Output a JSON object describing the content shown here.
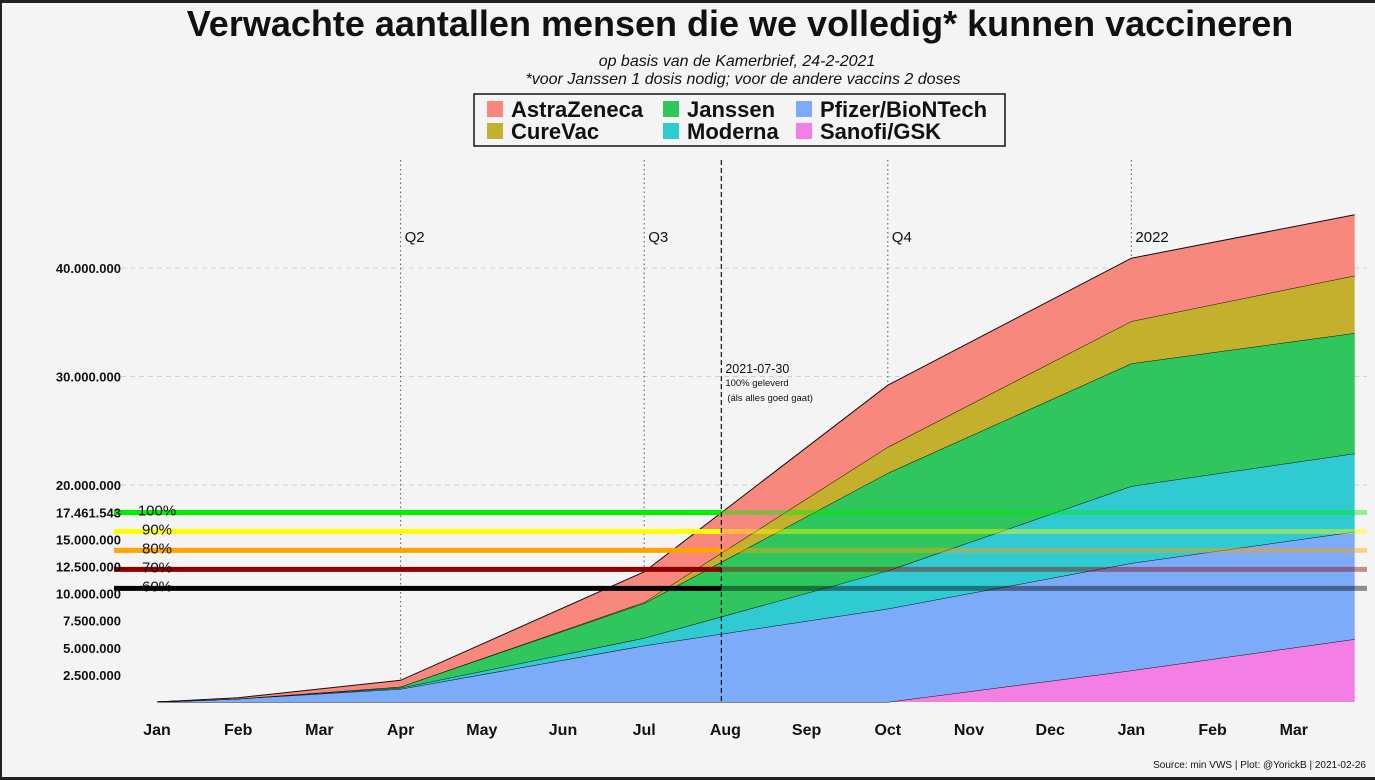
{
  "chart_data": {
    "type": "area",
    "title": "Verwachte aantallen mensen die we volledig* kunnen vaccineren",
    "subtitle": "op basis van de Kamerbrief, 24-2-2021",
    "subtitle2": "*voor Janssen 1 dosis nodig; voor de andere vaccins 2 doses",
    "source": "Source: min VWS | Plot: @YorickB |  2021-02-26",
    "x_months": [
      "Jan",
      "Feb",
      "Mar",
      "Apr",
      "May",
      "Jun",
      "Jul",
      "Aug",
      "Sep",
      "Oct",
      "Nov",
      "Dec",
      "Jan",
      "Feb",
      "Mar"
    ],
    "x_range_months": [
      0,
      14.75
    ],
    "ylim": [
      0,
      45000000
    ],
    "y_ticks": [
      {
        "value": 2500000,
        "label": "2.500.000"
      },
      {
        "value": 5000000,
        "label": "5.000.000"
      },
      {
        "value": 7500000,
        "label": "7.500.000"
      },
      {
        "value": 10000000,
        "label": "10.000.000"
      },
      {
        "value": 12500000,
        "label": "12.500.000"
      },
      {
        "value": 15000000,
        "label": "15.000.000"
      },
      {
        "value": 17461543,
        "label": "17.461.543"
      },
      {
        "value": 20000000,
        "label": "20.000.000"
      },
      {
        "value": 30000000,
        "label": "30.000.000"
      },
      {
        "value": 40000000,
        "label": "40.000.000"
      }
    ],
    "gridlines_at": [
      20000000,
      30000000,
      40000000
    ],
    "x": [
      0,
      1,
      3,
      6,
      9,
      12,
      14.75
    ],
    "series": [
      {
        "name": "Sanofi/GSK",
        "color": "#f37ee4",
        "values": [
          0,
          0,
          0,
          0,
          0,
          2900000,
          5800000
        ]
      },
      {
        "name": "Pfizer/BioNTech",
        "color": "#7cabf9",
        "values": [
          0,
          300000,
          1200000,
          5200000,
          8600000,
          9900000,
          9900000
        ]
      },
      {
        "name": "Moderna",
        "color": "#30cbd2",
        "values": [
          0,
          0,
          100000,
          700000,
          3500000,
          7100000,
          7200000
        ]
      },
      {
        "name": "Janssen",
        "color": "#2ec65d",
        "values": [
          0,
          0,
          100000,
          3200000,
          9000000,
          11300000,
          11100000
        ]
      },
      {
        "name": "CureVac",
        "color": "#c3b12e",
        "values": [
          0,
          0,
          0,
          100000,
          2400000,
          3900000,
          5300000
        ]
      },
      {
        "name": "AstraZeneca",
        "color": "#f8887d",
        "values": [
          0,
          100000,
          600000,
          2800000,
          5700000,
          5800000,
          5600000
        ]
      }
    ],
    "legend": {
      "position": "top-center",
      "entries": [
        {
          "name": "AstraZeneca",
          "color": "#f8887d"
        },
        {
          "name": "Janssen",
          "color": "#2ec65d"
        },
        {
          "name": "Pfizer/BioNTech",
          "color": "#7cabf9"
        },
        {
          "name": "CureVac",
          "color": "#c3b12e"
        },
        {
          "name": "Moderna",
          "color": "#30cbd2"
        },
        {
          "name": "Sanofi/GSK",
          "color": "#f37ee4"
        }
      ]
    },
    "quarter_lines": [
      {
        "month": 3,
        "label": "Q2"
      },
      {
        "month": 6,
        "label": "Q3"
      },
      {
        "month": 9,
        "label": "Q4"
      },
      {
        "month": 12,
        "label": "2022"
      }
    ],
    "marker": {
      "month": 6.95,
      "date": "2021-07-30",
      "line1": "100% geleverd",
      "line2": "(áls alles goed gaat)"
    },
    "thresholds": [
      {
        "label": "100%",
        "value": 17461543,
        "color": "#00ee00"
      },
      {
        "label": "90%",
        "value": 15715389,
        "color": "#ffff00"
      },
      {
        "label": "80%",
        "value": 13969234,
        "color": "#ffa500"
      },
      {
        "label": "70%",
        "value": 12223080,
        "color": "#8b0000"
      },
      {
        "label": "60%",
        "value": 10476926,
        "color": "#000000"
      }
    ]
  }
}
